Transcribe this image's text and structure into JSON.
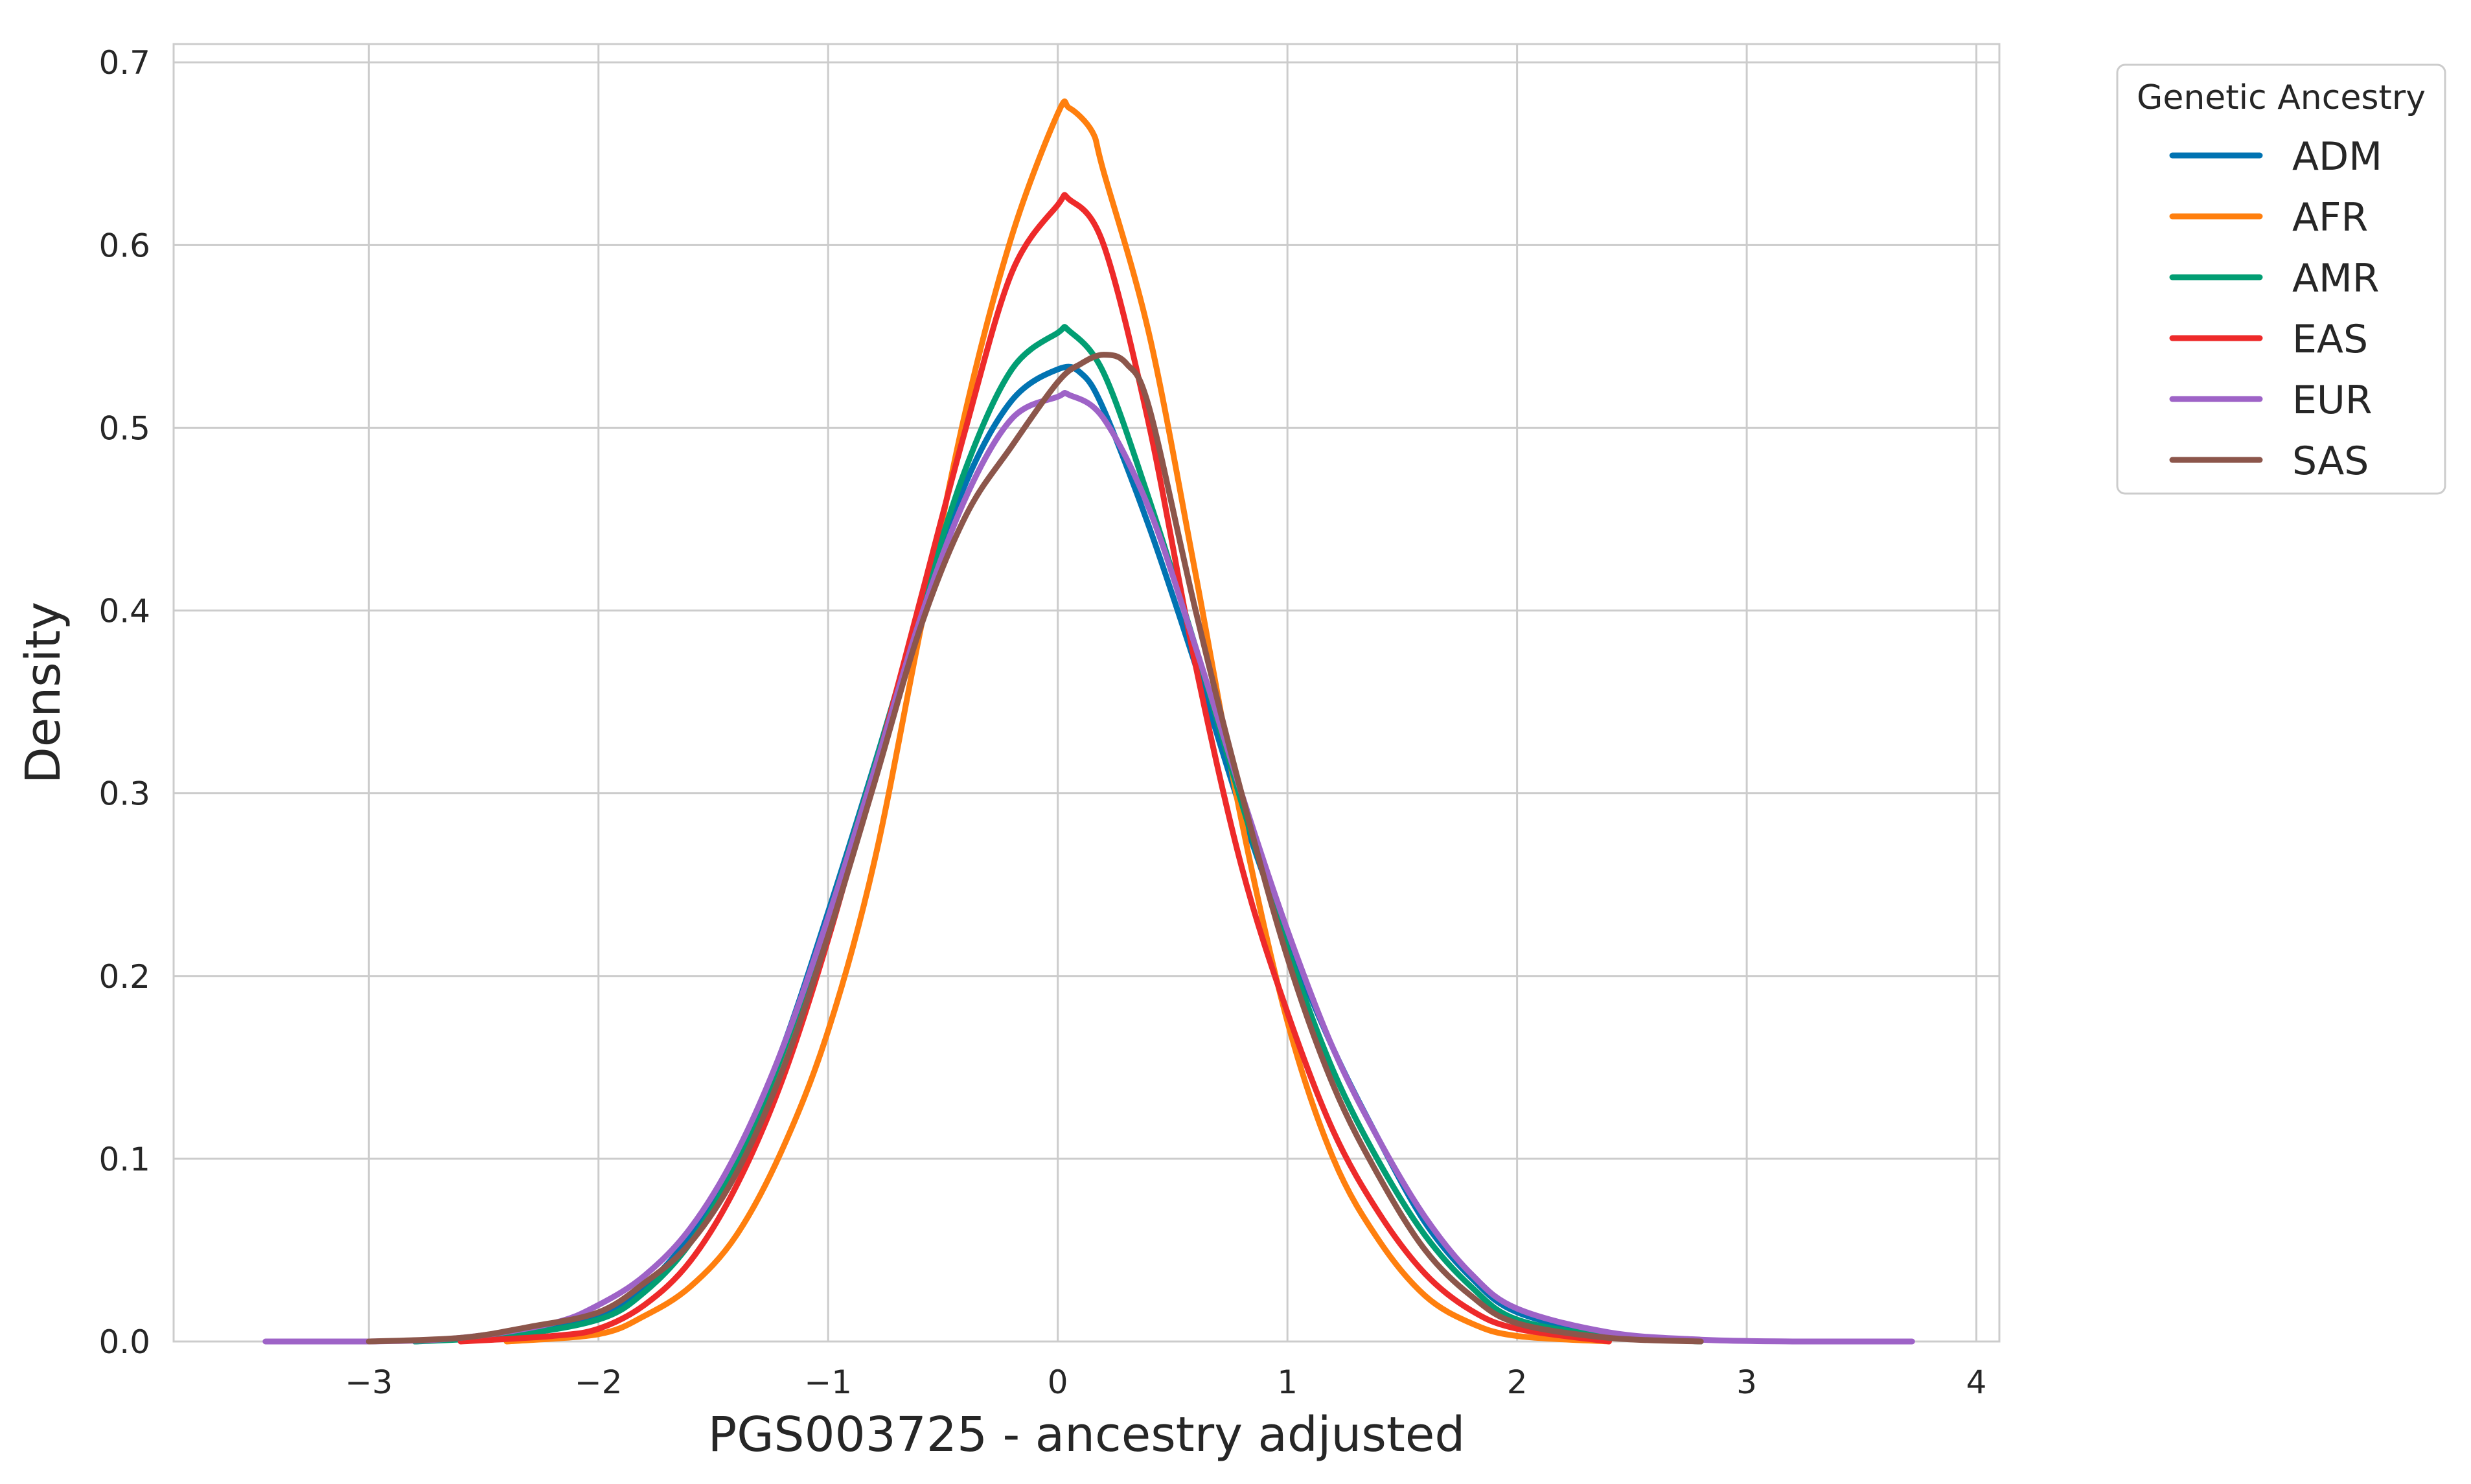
{
  "chart_data": {
    "type": "line",
    "title": "",
    "xlabel": "PGS003725 - ancestry adjusted",
    "ylabel": "Density",
    "xlim": [
      -3.85,
      4.1
    ],
    "ylim": [
      0,
      0.71
    ],
    "x_ticks": [
      -3,
      -2,
      -1,
      0,
      1,
      2,
      3,
      4
    ],
    "x_tick_labels": [
      "−3",
      "−2",
      "−1",
      "0",
      "1",
      "2",
      "3",
      "4"
    ],
    "y_ticks": [
      0.0,
      0.1,
      0.2,
      0.3,
      0.4,
      0.5,
      0.6,
      0.7
    ],
    "y_tick_labels": [
      "0.0",
      "0.1",
      "0.2",
      "0.3",
      "0.4",
      "0.5",
      "0.6",
      "0.7"
    ],
    "grid": true,
    "legend": {
      "title": "Genetic Ancestry",
      "placement": "outside-top-right"
    },
    "series": [
      {
        "name": "ADM",
        "color": "#0173b2",
        "x": [
          -2.8,
          -2.4,
          -2.0,
          -1.8,
          -1.6,
          -1.4,
          -1.2,
          -1.0,
          -0.8,
          -0.6,
          -0.4,
          -0.2,
          0.0,
          0.1,
          0.2,
          0.4,
          0.6,
          0.8,
          1.0,
          1.2,
          1.4,
          1.6,
          1.8,
          2.0,
          2.4,
          2.8
        ],
        "y": [
          0.0,
          0.004,
          0.014,
          0.03,
          0.058,
          0.1,
          0.16,
          0.235,
          0.315,
          0.398,
          0.47,
          0.515,
          0.532,
          0.53,
          0.51,
          0.445,
          0.37,
          0.29,
          0.22,
          0.16,
          0.11,
          0.065,
          0.035,
          0.016,
          0.004,
          0.0
        ]
      },
      {
        "name": "AFR",
        "color": "#ff7f0e",
        "x": [
          -2.4,
          -2.0,
          -1.8,
          -1.6,
          -1.4,
          -1.2,
          -1.0,
          -0.8,
          -0.6,
          -0.4,
          -0.2,
          0.0,
          0.05,
          0.15,
          0.2,
          0.4,
          0.6,
          0.8,
          1.0,
          1.2,
          1.4,
          1.6,
          1.8,
          2.0,
          2.4
        ],
        "y": [
          0.0,
          0.004,
          0.014,
          0.03,
          0.058,
          0.105,
          0.17,
          0.262,
          0.388,
          0.51,
          0.605,
          0.672,
          0.675,
          0.662,
          0.64,
          0.55,
          0.42,
          0.285,
          0.175,
          0.1,
          0.055,
          0.025,
          0.01,
          0.003,
          0.0
        ]
      },
      {
        "name": "AMR",
        "color": "#029e73",
        "x": [
          -2.8,
          -2.4,
          -2.0,
          -1.8,
          -1.6,
          -1.4,
          -1.2,
          -1.0,
          -0.8,
          -0.6,
          -0.4,
          -0.2,
          0.0,
          0.05,
          0.2,
          0.4,
          0.6,
          0.8,
          1.0,
          1.2,
          1.4,
          1.6,
          1.8,
          2.0,
          2.4,
          2.8
        ],
        "y": [
          0.0,
          0.003,
          0.012,
          0.027,
          0.054,
          0.097,
          0.157,
          0.232,
          0.314,
          0.4,
          0.478,
          0.532,
          0.552,
          0.553,
          0.53,
          0.46,
          0.38,
          0.295,
          0.215,
          0.148,
          0.098,
          0.058,
          0.03,
          0.012,
          0.003,
          0.0
        ]
      },
      {
        "name": "EAS",
        "color": "#ee2a2a",
        "x": [
          -2.6,
          -2.2,
          -2.0,
          -1.8,
          -1.6,
          -1.4,
          -1.2,
          -1.0,
          -0.8,
          -0.6,
          -0.4,
          -0.2,
          0.0,
          0.05,
          0.2,
          0.4,
          0.6,
          0.8,
          1.0,
          1.2,
          1.4,
          1.6,
          1.8,
          2.0,
          2.4
        ],
        "y": [
          0.0,
          0.003,
          0.007,
          0.02,
          0.044,
          0.085,
          0.143,
          0.22,
          0.31,
          0.405,
          0.5,
          0.585,
          0.622,
          0.625,
          0.6,
          0.5,
          0.37,
          0.26,
          0.18,
          0.115,
          0.07,
          0.037,
          0.017,
          0.007,
          0.0
        ]
      },
      {
        "name": "EUR",
        "color": "#9e63c7",
        "x": [
          -3.45,
          -3.0,
          -2.6,
          -2.2,
          -2.0,
          -1.8,
          -1.6,
          -1.4,
          -1.2,
          -1.0,
          -0.8,
          -0.6,
          -0.4,
          -0.2,
          0.0,
          0.05,
          0.2,
          0.4,
          0.6,
          0.8,
          1.0,
          1.2,
          1.4,
          1.6,
          1.8,
          2.0,
          2.4,
          2.8,
          3.2,
          3.72
        ],
        "y": [
          0.0,
          0.0,
          0.002,
          0.01,
          0.02,
          0.036,
          0.062,
          0.103,
          0.16,
          0.232,
          0.312,
          0.395,
          0.462,
          0.505,
          0.517,
          0.518,
          0.505,
          0.455,
          0.38,
          0.3,
          0.225,
          0.16,
          0.11,
          0.068,
          0.037,
          0.018,
          0.005,
          0.001,
          0.0,
          0.0
        ]
      },
      {
        "name": "SAS",
        "color": "#8c564b",
        "x": [
          -3.0,
          -2.6,
          -2.3,
          -2.0,
          -1.8,
          -1.6,
          -1.4,
          -1.2,
          -1.0,
          -0.8,
          -0.6,
          -0.4,
          -0.2,
          0.0,
          0.1,
          0.2,
          0.3,
          0.4,
          0.6,
          0.8,
          1.0,
          1.2,
          1.4,
          1.6,
          1.8,
          2.0,
          2.4,
          2.8
        ],
        "y": [
          0.0,
          0.002,
          0.008,
          0.016,
          0.032,
          0.054,
          0.092,
          0.148,
          0.222,
          0.305,
          0.39,
          0.452,
          0.49,
          0.525,
          0.535,
          0.54,
          0.535,
          0.51,
          0.4,
          0.3,
          0.21,
          0.14,
          0.09,
          0.05,
          0.025,
          0.01,
          0.002,
          0.0
        ]
      }
    ]
  }
}
